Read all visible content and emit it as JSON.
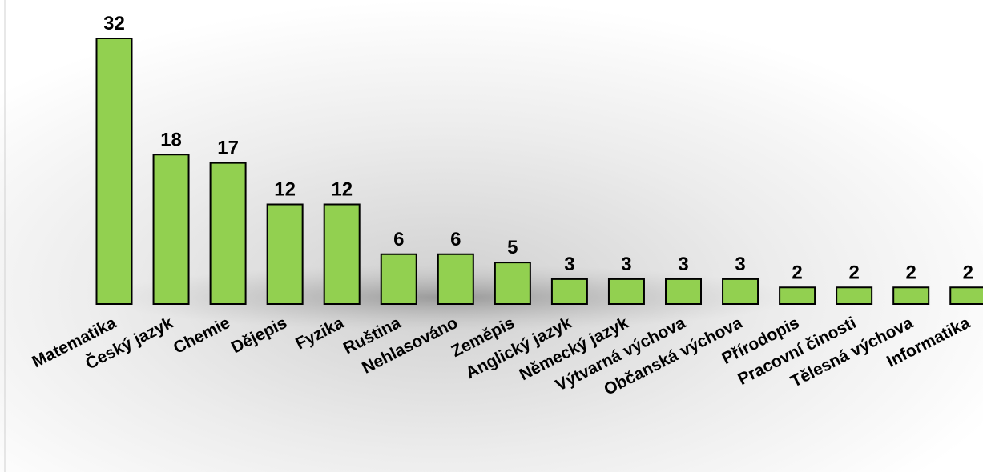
{
  "chart_data": {
    "type": "bar",
    "categories": [
      "Matematika",
      "Český jazyk",
      "Chemie",
      "Dějepis",
      "Fyzika",
      "Ruština",
      "Nehlasováno",
      "Zeměpis",
      "Anglický jazyk",
      "Německý jazyk",
      "Výtvarná výchova",
      "Občanská výchova",
      "Přírodopis",
      "Pracovní činosti",
      "Tělesná výchova",
      "Informatika"
    ],
    "values": [
      32,
      18,
      17,
      12,
      12,
      6,
      6,
      5,
      3,
      3,
      3,
      3,
      2,
      2,
      2,
      2
    ],
    "title": "",
    "xlabel": "",
    "ylabel": "",
    "ylim": [
      0,
      32
    ],
    "grid": false,
    "legend": "none",
    "data_labels": true,
    "bar_color": "#92d050",
    "bar_outline": "#000000"
  }
}
